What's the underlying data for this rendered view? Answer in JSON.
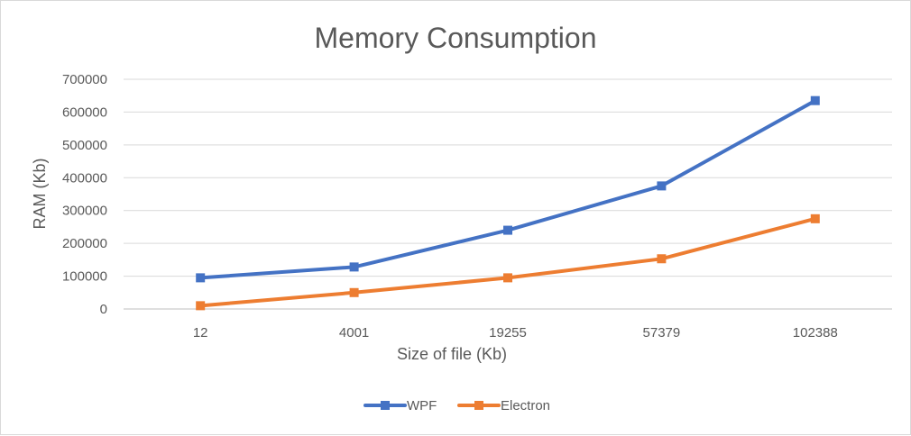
{
  "chart_data": {
    "type": "line",
    "title": "Memory Consumption",
    "xlabel": "Size of file (Kb)",
    "ylabel": "RAM (Kb)",
    "categories": [
      "12",
      "4001",
      "19255",
      "57379",
      "102388"
    ],
    "ylim": [
      0,
      700000
    ],
    "yticks": [
      0,
      100000,
      200000,
      300000,
      400000,
      500000,
      600000,
      700000
    ],
    "grid": true,
    "legend_position": "bottom",
    "series": [
      {
        "name": "WPF",
        "color": "#4472c4",
        "marker": "square",
        "values": [
          95000,
          128000,
          240000,
          375000,
          635000
        ]
      },
      {
        "name": "Electron",
        "color": "#ed7d31",
        "marker": "square",
        "values": [
          10000,
          50000,
          95000,
          153000,
          275000
        ]
      }
    ]
  }
}
